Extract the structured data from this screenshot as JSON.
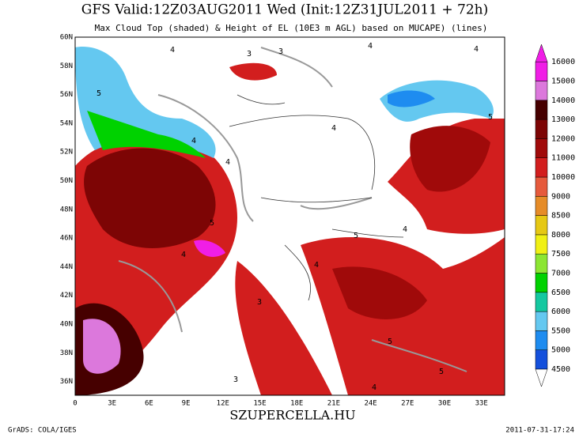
{
  "header": {
    "title": "GFS Valid:12Z03AUG2011 Wed (Init:12Z31JUL2011 + 72h)",
    "subtitle": "Max Cloud Top (shaded) & Height of EL (10E3 m AGL) based on MUCAPE) (lines)"
  },
  "map": {
    "lat_labels": [
      "60N",
      "58N",
      "56N",
      "54N",
      "52N",
      "50N",
      "48N",
      "46N",
      "44N",
      "42N",
      "40N",
      "38N",
      "36N"
    ],
    "lon_labels": [
      "0",
      "3E",
      "6E",
      "9E",
      "12E",
      "15E",
      "18E",
      "21E",
      "24E",
      "27E",
      "30E",
      "33E"
    ],
    "contour_labels": [
      "4",
      "3",
      "4",
      "5",
      "4",
      "3",
      "4",
      "4",
      "5",
      "4",
      "3",
      "5",
      "4",
      "4",
      "5",
      "3",
      "4",
      "5",
      "4",
      "5"
    ]
  },
  "colorbar": {
    "labels": [
      "4500",
      "5000",
      "5500",
      "6000",
      "6500",
      "7000",
      "7500",
      "8000",
      "8500",
      "9000",
      "10000",
      "11000",
      "12000",
      "13000",
      "14000",
      "15000",
      "16000"
    ],
    "colors": [
      "#1450dc",
      "#1e8cf0",
      "#64c8f0",
      "#14c8a0",
      "#00d200",
      "#8ce632",
      "#f0f014",
      "#e6c814",
      "#e68c28",
      "#e65a3c",
      "#d21e1e",
      "#a00a0a",
      "#7d0505",
      "#460000",
      "#dc78dc",
      "#f01ee6"
    ]
  },
  "footer": {
    "left": "GrADS: COLA/IGES",
    "center": "SZUPERCELLA.HU",
    "right": "2011-07-31-17:24"
  }
}
